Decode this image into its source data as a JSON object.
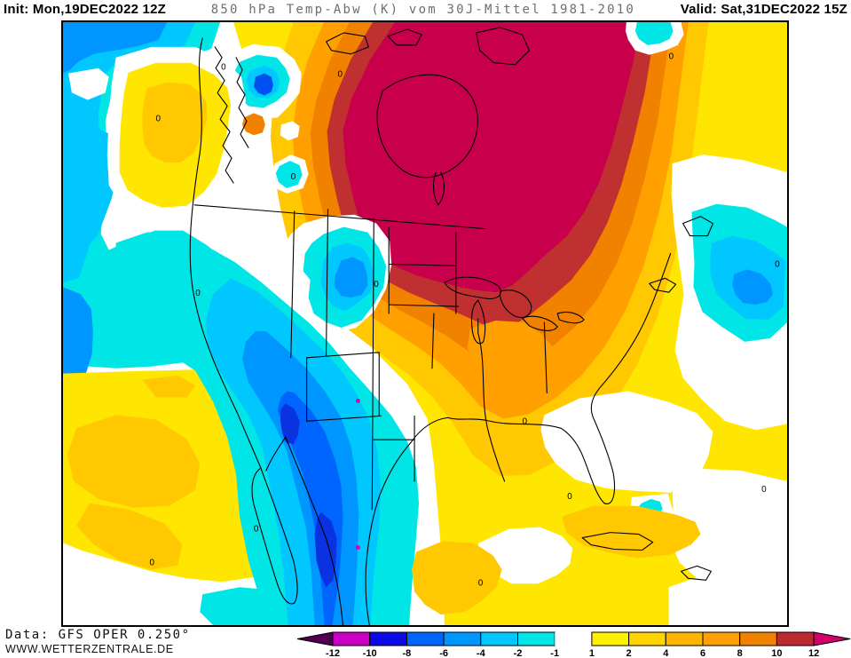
{
  "title": {
    "init_label": "Init:",
    "init_datetime": "Mon,19DEC2022 12Z",
    "subject": "850 hPa Temp-Abw (K) vom 30J-Mittel 1981-2010",
    "valid_label": "Valid:",
    "valid_datetime": "Sat,31DEC2022 15Z"
  },
  "footer": {
    "data_source": "Data: GFS OPER 0.250°",
    "website": "WWW.WETTERZENTRALE.DE"
  },
  "legend": {
    "units": "K",
    "boundary_labels": [
      "-12",
      "-10",
      "-8",
      "-6",
      "-4",
      "-2",
      "-1",
      "1",
      "2",
      "4",
      "6",
      "8",
      "10",
      "12"
    ],
    "box_colors": [
      "#C800C8",
      "#0A0AE6",
      "#0064FF",
      "#0096FF",
      "#00C8FF",
      "#00E6E6",
      "#FFFFFF",
      "#FFF000",
      "#FFD200",
      "#FFB400",
      "#FFA000",
      "#F08200",
      "#BE2832"
    ],
    "underflow_color": "#500050",
    "overflow_color": "#D20069"
  },
  "map": {
    "region": "North America",
    "parameter": "850 hPa temperature anomaly vs 1981-2010 mean",
    "contour_label": "0",
    "palette": {
      "extreme_warm": "#C8004B",
      "very_warm": "#C03030",
      "warm3": "#F08200",
      "warm2": "#FFA000",
      "warm1": "#FFC800",
      "warm0": "#FFE600",
      "cold0": "#00E6E6",
      "cold1": "#00C8FF",
      "cold2": "#0096FF",
      "cold3": "#0064FF",
      "cold4": "#0A32E1",
      "spot_magenta": "#E100A0",
      "neutral": "#FFFFFF"
    },
    "features": [
      {
        "name": "extreme warm anomaly core",
        "location": "central Canada / Hudson Bay",
        "value": "> +12 K"
      },
      {
        "name": "warm anomaly belt",
        "location": "Great Lakes / eastern US / Quebec",
        "value": "+2 to +10 K"
      },
      {
        "name": "cold anomaly trough",
        "location": "Rockies / New Mexico / northern Mexico",
        "value": "-2 to -8 K"
      },
      {
        "name": "cold anomaly",
        "location": "Gulf of Alaska / NE Pacific",
        "value": "-2 to -6 K"
      },
      {
        "name": "cold anomaly",
        "location": "western Atlantic",
        "value": "-2 to -6 K"
      },
      {
        "name": "near-zero band",
        "location": "US West Coast and Southeast / Gulf",
        "value": "0"
      }
    ]
  }
}
